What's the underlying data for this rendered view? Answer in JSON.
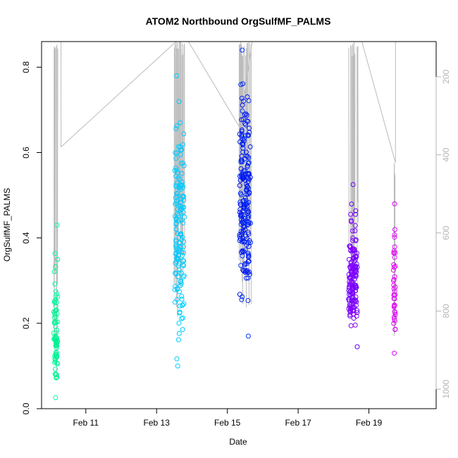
{
  "chart_data": {
    "type": "scatter",
    "title": "ATOM2 Northbound OrgSulfMF_PALMS",
    "xlabel": "Date",
    "ylabel": "OrgSulfMF_PALMS",
    "x_unit": "days (February)",
    "xlim": [
      9.75,
      20.9
    ],
    "ylim": [
      0.0,
      0.86
    ],
    "x_ticks": [
      {
        "value": 11,
        "label": "Feb 11"
      },
      {
        "value": 13,
        "label": "Feb 13"
      },
      {
        "value": 15,
        "label": "Feb 15"
      },
      {
        "value": 17,
        "label": "Feb 17"
      },
      {
        "value": 19,
        "label": "Feb 19"
      }
    ],
    "y_ticks": [
      0.0,
      0.2,
      0.4,
      0.6,
      0.8
    ],
    "y_tick_labels": [
      "0.0",
      "0.2",
      "0.4",
      "0.6",
      "0.8"
    ],
    "right_axis": {
      "ylim": [
        1050,
        110
      ],
      "ticks": [
        200,
        400,
        600,
        800,
        1000
      ],
      "color": "#b5b5b5"
    },
    "grid": false,
    "marker": "open-circle",
    "colors": {
      "point_scale": [
        "#00ffaa",
        "#00ccff",
        "#0022ff",
        "#7700ff",
        "#ee00ff"
      ],
      "profile_line": "#bbbbbb",
      "axis": "#000000"
    },
    "series": [
      {
        "x_center": 10.15,
        "x_spread": 0.06,
        "n": 80,
        "y_low": 0.026,
        "y_high": 0.43,
        "y_mean": 0.17,
        "p_high": 1050,
        "p_low": 110,
        "color_start": "#00ffb0",
        "color_end": "#00ee88"
      },
      {
        "x_center": 13.65,
        "x_spread": 0.15,
        "n": 150,
        "y_low": 0.1,
        "y_high": 0.78,
        "y_mean": 0.42,
        "p_high": 860,
        "p_low": 110,
        "color_start": "#00c8ff",
        "color_end": "#00ccff"
      },
      {
        "x_center": 15.5,
        "x_spread": 0.17,
        "n": 200,
        "y_low": 0.17,
        "y_high": 0.84,
        "y_mean": 0.48,
        "p_high": 820,
        "p_low": 110,
        "color_start": "#0033ff",
        "color_end": "#0011ee"
      },
      {
        "x_center": 18.55,
        "x_spread": 0.14,
        "n": 150,
        "y_low": 0.145,
        "y_high": 0.525,
        "y_mean": 0.29,
        "p_high": 830,
        "p_low": 110,
        "color_start": "#6600ff",
        "color_end": "#8800ff"
      },
      {
        "x_center": 19.72,
        "x_spread": 0.03,
        "n": 40,
        "y_low": 0.13,
        "y_high": 0.48,
        "y_mean": 0.27,
        "p_high": 900,
        "p_low": 420,
        "color_start": "#dd00ff",
        "color_end": "#ee00ff"
      }
    ],
    "transects": [
      {
        "x": 10.05,
        "p": 110
      },
      {
        "x": 10.3,
        "p": 110
      },
      {
        "x": 10.3,
        "p": 380
      },
      {
        "x": 13.55,
        "p": 110
      },
      {
        "x": 13.9,
        "p": 110
      },
      {
        "x": 15.35,
        "p": 330
      },
      {
        "x": 15.7,
        "p": 110
      },
      {
        "x": 18.4,
        "p": 110
      },
      {
        "x": 18.8,
        "p": 110
      },
      {
        "x": 19.75,
        "p": 420
      },
      {
        "x": 19.75,
        "p": 110
      }
    ]
  }
}
